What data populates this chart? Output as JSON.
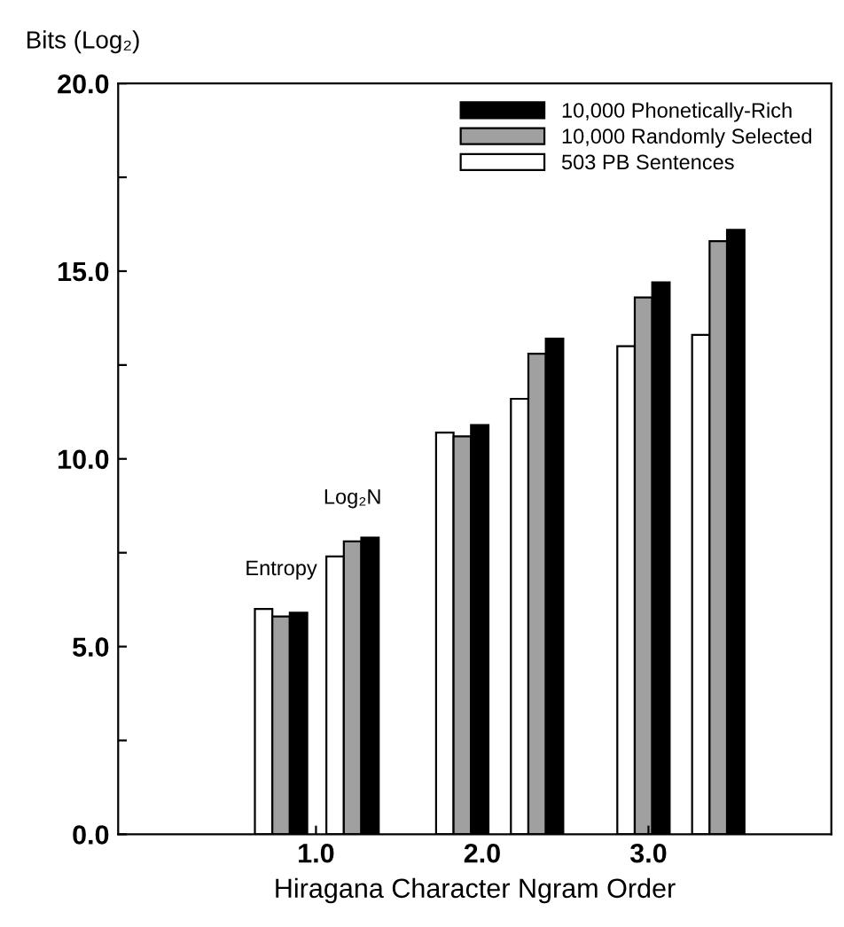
{
  "chart_data": {
    "type": "bar",
    "xlabel": "Hiragana Character Ngram Order",
    "ylabel": "Bits (Log₂)",
    "x": [
      0.79,
      1.22,
      1.88,
      2.33,
      2.97,
      3.42
    ],
    "series": [
      {
        "name": "503 PB Sentences",
        "color": "#ffffff",
        "values": [
          6.0,
          7.4,
          10.7,
          11.6,
          13.0,
          13.3
        ]
      },
      {
        "name": "10,000 Randomly Selected",
        "color": "#a0a0a0",
        "values": [
          5.8,
          7.8,
          10.6,
          12.8,
          14.3,
          15.8
        ]
      },
      {
        "name": "10,000 Phonetically-Rich",
        "color": "#000000",
        "values": [
          5.9,
          7.9,
          10.9,
          13.2,
          14.7,
          16.1
        ]
      }
    ],
    "xlim": [
      -0.19,
      4.1
    ],
    "xticks": [
      {
        "value": 1,
        "label": "1.0"
      },
      {
        "value": 2,
        "label": "2.0"
      },
      {
        "value": 3,
        "label": "3.0"
      }
    ],
    "ylim": [
      0,
      20
    ],
    "yticks": [
      {
        "value": 0,
        "label": "0.0"
      },
      {
        "value": 2.5,
        "label": null
      },
      {
        "value": 5,
        "label": "5.0"
      },
      {
        "value": 7.5,
        "label": null
      },
      {
        "value": 10,
        "label": "10.0"
      },
      {
        "value": 12.5,
        "label": null
      },
      {
        "value": 15,
        "label": "15.0"
      },
      {
        "value": 17.5,
        "label": null
      },
      {
        "value": 20,
        "label": "20.0"
      }
    ],
    "annotations": [
      {
        "text": "Entropy",
        "x": 0.79,
        "y": 6.0
      },
      {
        "text": "Log₂N",
        "x": 1.22,
        "y": 7.9
      }
    ],
    "legend": "top right",
    "grid": false
  }
}
